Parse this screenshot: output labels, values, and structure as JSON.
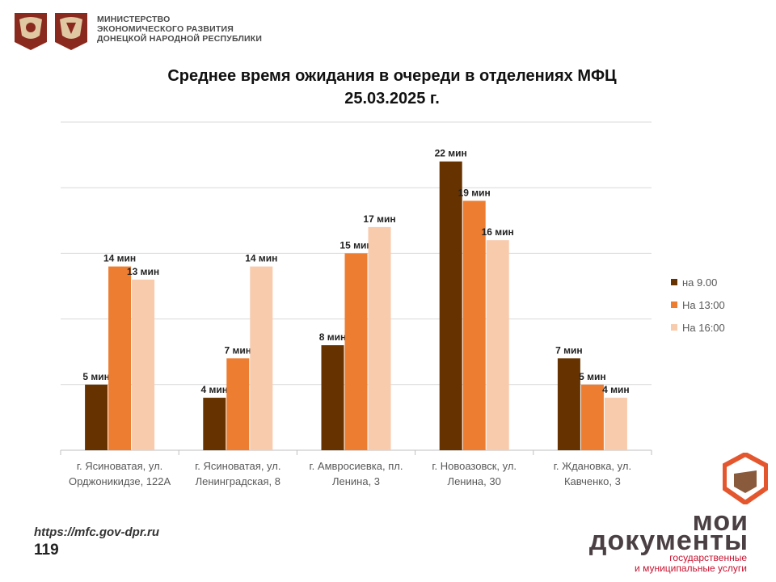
{
  "header": {
    "ministry_lines": [
      "МИНИСТЕРСТВО",
      "ЭКОНОМИЧЕСКОГО РАЗВИТИЯ",
      "ДОНЕЦКОЙ НАРОДНОЙ РЕСПУБЛИКИ"
    ],
    "emblem_icon": "coat-of-arms-emblem",
    "emblem2_icon": "dpr-coat-of-arms-emblem"
  },
  "title": {
    "line1": "Среднее время ожидания в очереди в отделениях МФЦ",
    "line2": "25.03.2025   г."
  },
  "chart_data": {
    "type": "bar",
    "title": "Среднее время ожидания в очереди в отделениях МФЦ 25.03.2025 г.",
    "categories": [
      [
        "г. Ясиноватая, ул.",
        "Орджоникидзе, 122А"
      ],
      [
        "г. Ясиноватая, ул.",
        "Ленинградская, 8"
      ],
      [
        "г. Амвросиевка, пл.",
        "Ленина, 3"
      ],
      [
        "г. Новоазовск, ул.",
        "Ленина, 30"
      ],
      [
        "г. Ждановка, ул.",
        "Кавченко, 3"
      ]
    ],
    "series": [
      {
        "name": "на 9.00",
        "color": "#663300",
        "values": [
          5,
          4,
          8,
          22,
          7
        ]
      },
      {
        "name": "На 13:00",
        "color": "#ed7d31",
        "values": [
          14,
          7,
          15,
          19,
          5
        ]
      },
      {
        "name": "На 16:00",
        "color": "#f8cbad",
        "values": [
          13,
          14,
          17,
          16,
          4
        ]
      }
    ],
    "value_suffix": " мин",
    "ylim": [
      0,
      25
    ],
    "grid": true,
    "legend_position": "right"
  },
  "footer": {
    "url": "https://mfc.gov-dpr.ru",
    "page": "119"
  },
  "brand": {
    "line1": "мои",
    "line2": "документы",
    "line3a": "государственные",
    "line3b": "и муниципальные услуги",
    "logo_icon": "moi-dokumenty-logo",
    "accent": "#c8102e"
  }
}
